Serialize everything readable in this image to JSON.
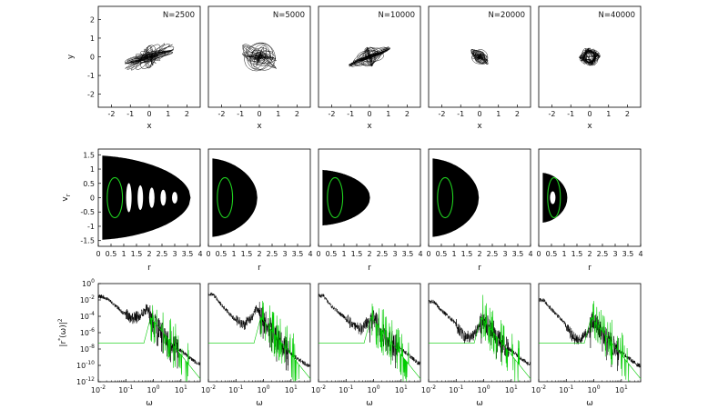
{
  "chart_data": [
    {
      "row": "trajectories",
      "type": "scatter",
      "xlabel": "x",
      "ylabel": "y",
      "xlim": [
        -2.7,
        2.7
      ],
      "ylim": [
        -2.7,
        2.7
      ],
      "xticks": [
        "-2",
        "-1",
        "0",
        "1",
        "2"
      ],
      "yticks": [
        "2",
        "1",
        "0",
        "-1",
        "-2"
      ],
      "grid": false,
      "panels": [
        {
          "label": "N=2500",
          "spread_x": 1.3,
          "spread_y": 0.6,
          "tilt": 0.25,
          "ring": 0
        },
        {
          "label": "N=5000",
          "spread_x": 0.9,
          "spread_y": 0.75,
          "tilt": 0.1,
          "ring": 0
        },
        {
          "label": "N=10000",
          "spread_x": 1.1,
          "spread_y": 0.55,
          "tilt": 0.3,
          "ring": 0
        },
        {
          "label": "N=20000",
          "spread_x": 0.45,
          "spread_y": 0.4,
          "tilt": 0.0,
          "ring": 0
        },
        {
          "label": "N=40000",
          "spread_x": 0.5,
          "spread_y": 0.45,
          "tilt": 0.0,
          "ring": 0.25
        }
      ]
    },
    {
      "row": "phase-space",
      "type": "scatter",
      "xlabel": "r",
      "ylabel": "vr",
      "xlim": [
        0,
        4
      ],
      "ylim": [
        -1.7,
        1.7
      ],
      "xticks": [
        "0",
        "0.5",
        "1",
        "1.5",
        "2",
        "2.5",
        "3",
        "3.5",
        "4"
      ],
      "yticks": [
        "1.5",
        "1",
        "0.5",
        "0",
        "-0.5",
        "-1",
        "-1.5"
      ],
      "grid": false,
      "panels": [
        {
          "rmax": 3.6,
          "vmax": 1.45,
          "green_rmin": 0.35,
          "green_rmax": 0.95,
          "green_v": 0.7
        },
        {
          "rmax": 1.9,
          "vmax": 1.35,
          "green_rmin": 0.35,
          "green_rmax": 0.95,
          "green_v": 0.7
        },
        {
          "rmax": 2.0,
          "vmax": 0.95,
          "green_rmin": 0.35,
          "green_rmax": 0.95,
          "green_v": 0.7
        },
        {
          "rmax": 1.95,
          "vmax": 1.35,
          "green_rmin": 0.35,
          "green_rmax": 0.95,
          "green_v": 0.7
        },
        {
          "rmax": 1.1,
          "vmax": 0.85,
          "green_rmin": 0.35,
          "green_rmax": 0.85,
          "green_v": 0.7
        }
      ]
    },
    {
      "row": "spectra",
      "type": "line",
      "xlabel": "ω",
      "ylabel": "|r^*(ω)|^2",
      "xscale": "log",
      "yscale": "log",
      "xlim": [
        0.01,
        50
      ],
      "ylim": [
        1e-12,
        1
      ],
      "xticks": [
        {
          "base": "10",
          "exp": "-2"
        },
        {
          "base": "10",
          "exp": "-1"
        },
        {
          "base": "10",
          "exp": "0"
        },
        {
          "base": "10",
          "exp": "1"
        }
      ],
      "yticks": [
        {
          "base": "10",
          "exp": "0"
        },
        {
          "base": "10",
          "exp": "-2"
        },
        {
          "base": "10",
          "exp": "-4"
        },
        {
          "base": "10",
          "exp": "-6"
        },
        {
          "base": "10",
          "exp": "-8"
        },
        {
          "base": "10",
          "exp": "-10"
        },
        {
          "base": "10",
          "exp": "-12"
        }
      ],
      "grid": false,
      "series_colors": {
        "black": "#000000",
        "green": "#00cc00"
      },
      "panels": [
        {
          "black_w": [
            0.015,
            0.03,
            0.08,
            0.2,
            0.35,
            0.6,
            1,
            2,
            5,
            10,
            20,
            40
          ],
          "black_logp": [
            -1.6,
            -2.2,
            -3.6,
            -4.3,
            -3.8,
            -3.0,
            -4.8,
            -5.8,
            -7.4,
            -8.2,
            -9.0,
            -9.8
          ],
          "green_plateau": -7.3
        },
        {
          "black_w": [
            0.015,
            0.03,
            0.08,
            0.2,
            0.35,
            0.6,
            1,
            2,
            5,
            10,
            20,
            40
          ],
          "black_logp": [
            -1.3,
            -2.6,
            -4.2,
            -5.1,
            -4.2,
            -3.1,
            -4.0,
            -5.8,
            -7.6,
            -8.6,
            -9.3,
            -10.0
          ],
          "green_plateau": -7.3
        },
        {
          "black_w": [
            0.015,
            0.03,
            0.08,
            0.2,
            0.35,
            0.6,
            1,
            2,
            5,
            10,
            20,
            40
          ],
          "black_logp": [
            -1.5,
            -2.8,
            -4.0,
            -5.2,
            -5.6,
            -4.8,
            -4.2,
            -5.8,
            -7.3,
            -8.0,
            -8.8,
            -9.7
          ],
          "green_plateau": -7.3
        },
        {
          "black_w": [
            0.015,
            0.03,
            0.08,
            0.2,
            0.35,
            0.6,
            1,
            2,
            5,
            10,
            20,
            40
          ],
          "black_logp": [
            -2.2,
            -3.3,
            -4.6,
            -6.6,
            -6.5,
            -5.6,
            -4.6,
            -5.8,
            -7.4,
            -8.2,
            -9.0,
            -9.8
          ],
          "green_plateau": -7.3
        },
        {
          "black_w": [
            0.015,
            0.03,
            0.08,
            0.2,
            0.35,
            0.6,
            1,
            2,
            5,
            10,
            20,
            40
          ],
          "black_logp": [
            -2.0,
            -3.2,
            -4.7,
            -6.8,
            -6.8,
            -5.9,
            -4.5,
            -5.9,
            -7.6,
            -8.4,
            -9.2,
            -10.0
          ],
          "green_plateau": -7.3
        }
      ]
    }
  ]
}
